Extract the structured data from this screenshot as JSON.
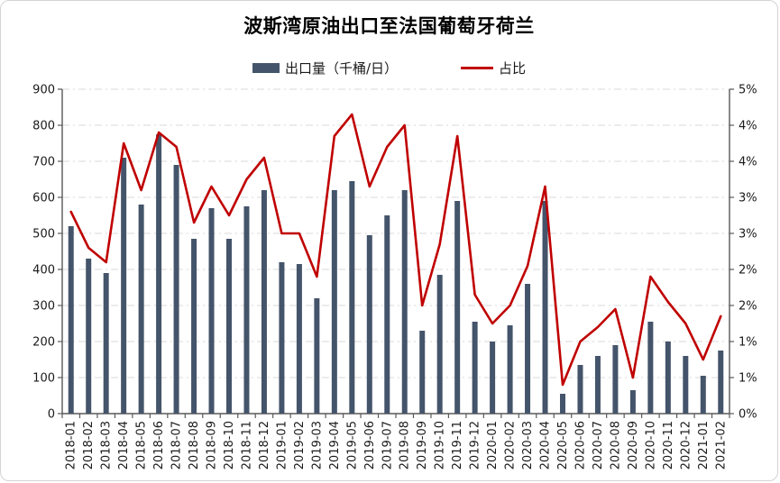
{
  "title": "波斯湾原油出口至法国葡萄牙荷兰",
  "legend": [
    {
      "label": "出口量（千桶/日）",
      "type": "bar",
      "color": "#44546A"
    },
    {
      "label": "占比",
      "type": "line",
      "color": "#C00000"
    }
  ],
  "chart_data": {
    "type": "bar",
    "combo": "bar+line, dual axis",
    "title": "波斯湾原油出口至法国葡萄牙荷兰",
    "grid": "horizontal dashed",
    "legend_position": "top",
    "categories": [
      "2018-01",
      "2018-02",
      "2018-03",
      "2018-04",
      "2018-05",
      "2018-06",
      "2018-07",
      "2018-08",
      "2018-09",
      "2018-10",
      "2018-11",
      "2018-12",
      "2019-01",
      "2019-02",
      "2019-03",
      "2019-04",
      "2019-05",
      "2019-06",
      "2019-07",
      "2019-08",
      "2019-09",
      "2019-10",
      "2019-11",
      "2019-12",
      "2020-01",
      "2020-02",
      "2020-03",
      "2020-04",
      "2020-05",
      "2020-06",
      "2020-07",
      "2020-08",
      "2020-09",
      "2020-10",
      "2020-11",
      "2020-12",
      "2021-01",
      "2021-02"
    ],
    "series": [
      {
        "name": "出口量（千桶/日）",
        "type": "bar",
        "axis": "left",
        "color": "#44546A",
        "values": [
          520,
          430,
          390,
          710,
          580,
          775,
          690,
          485,
          570,
          485,
          575,
          620,
          420,
          415,
          320,
          620,
          645,
          495,
          550,
          620,
          230,
          385,
          590,
          255,
          200,
          245,
          360,
          590,
          55,
          135,
          160,
          190,
          65,
          255,
          200,
          160,
          105,
          175
        ]
      },
      {
        "name": "占比",
        "type": "line",
        "axis": "right",
        "color": "#C00000",
        "unit": "%",
        "values": [
          2.8,
          2.3,
          2.1,
          3.75,
          3.1,
          3.9,
          3.7,
          2.65,
          3.15,
          2.75,
          3.25,
          3.55,
          2.5,
          2.5,
          1.9,
          3.85,
          4.15,
          3.15,
          3.7,
          4.0,
          1.5,
          2.35,
          3.85,
          1.65,
          1.25,
          1.5,
          2.05,
          3.15,
          0.4,
          1.0,
          1.2,
          1.45,
          0.5,
          1.9,
          1.55,
          1.25,
          0.75,
          1.35
        ]
      }
    ],
    "left_axis": {
      "min": 0,
      "max": 900,
      "step": 100,
      "tick_labels": [
        "900",
        "800",
        "700",
        "600",
        "500",
        "400",
        "300",
        "200",
        "100",
        "0"
      ]
    },
    "right_axis": {
      "min": 0,
      "max": 4.5,
      "step": 0.5,
      "tick_labels": [
        "5%",
        "4%",
        "4%",
        "3%",
        "3%",
        "2%",
        "2%",
        "1%",
        "1%",
        "0%"
      ]
    }
  }
}
